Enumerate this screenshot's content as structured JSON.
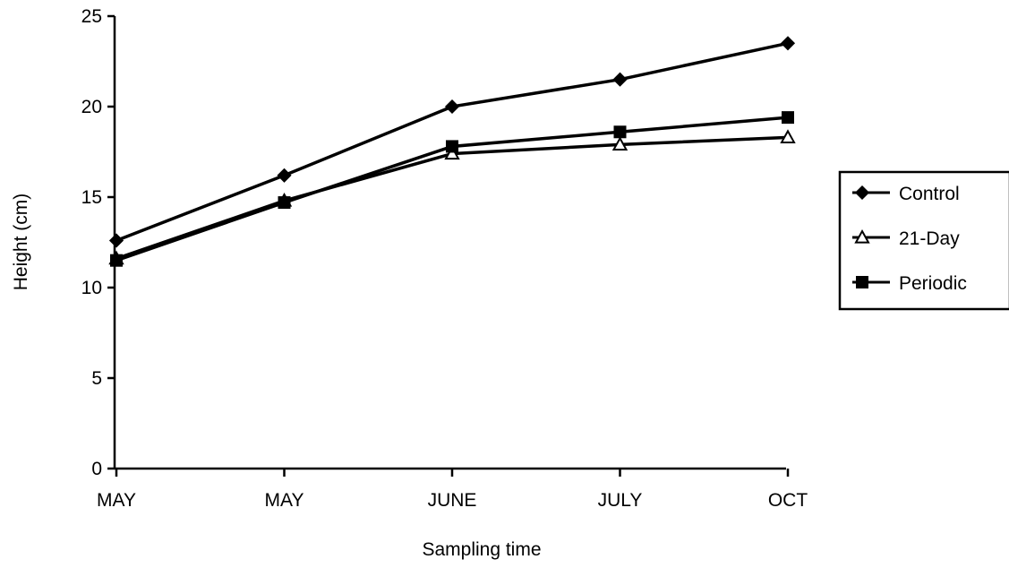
{
  "chart_data": {
    "type": "line",
    "title": "",
    "xlabel": "Sampling time",
    "ylabel": "Height (cm)",
    "categories": [
      "MAY",
      "MAY",
      "JUNE",
      "JULY",
      "OCT"
    ],
    "ylim": [
      0,
      25
    ],
    "yticks": [
      0,
      5,
      10,
      15,
      20,
      25
    ],
    "grid": false,
    "legend_position": "right",
    "series": [
      {
        "name": "Control",
        "marker": "diamond-filled",
        "color": "#000000",
        "values": [
          12.6,
          16.2,
          20.0,
          21.5,
          23.5
        ]
      },
      {
        "name": "21-Day",
        "marker": "triangle-open",
        "color": "#000000",
        "values": [
          11.6,
          14.8,
          17.4,
          17.9,
          18.3
        ]
      },
      {
        "name": "Periodic",
        "marker": "square-filled",
        "color": "#000000",
        "values": [
          11.5,
          14.7,
          17.8,
          18.6,
          19.4
        ]
      }
    ]
  }
}
